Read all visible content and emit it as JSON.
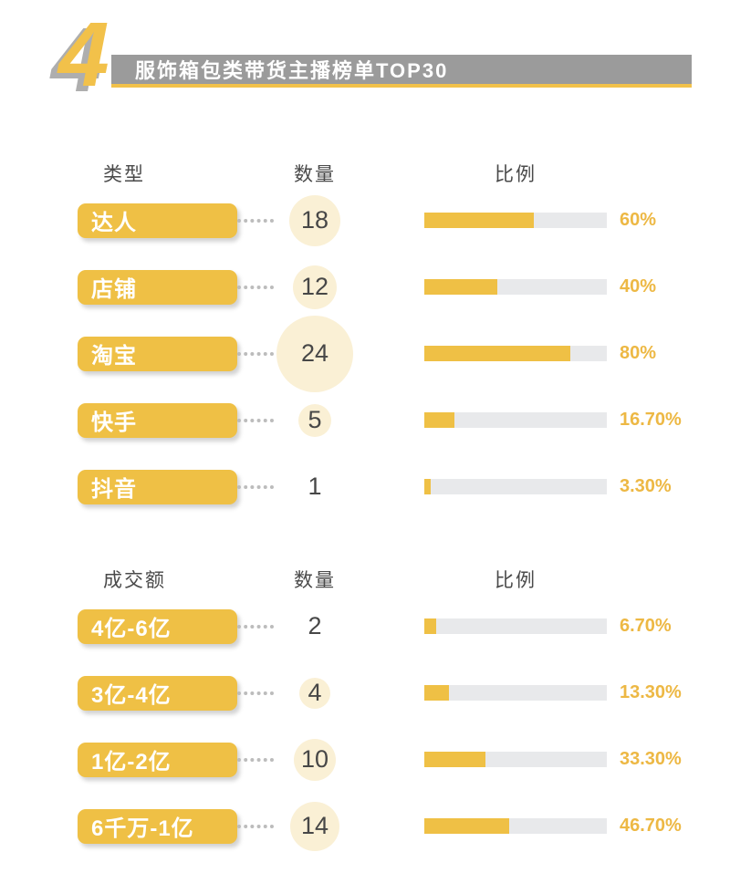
{
  "header": {
    "number": "4",
    "title": "服饰箱包类带货主播榜单TOP30"
  },
  "colors": {
    "accent": "#EFC045",
    "track": "#E8E9EB",
    "circle": "#FAF0D5",
    "banner": "#9B9B9B",
    "percent_text": "#EDB844"
  },
  "sections": [
    {
      "headers": {
        "col1": "类型",
        "col2": "数量",
        "col3": "比例"
      },
      "rows": [
        {
          "label": "达人",
          "count": "18",
          "percent": 60,
          "percent_label": "60%",
          "circle": 56
        },
        {
          "label": "店铺",
          "count": "12",
          "percent": 40,
          "percent_label": "40%",
          "circle": 48
        },
        {
          "label": "淘宝",
          "count": "24",
          "percent": 80,
          "percent_label": "80%",
          "circle": 84
        },
        {
          "label": "快手",
          "count": "5",
          "percent": 16.7,
          "percent_label": "16.70%",
          "circle": 36
        },
        {
          "label": "抖音",
          "count": "1",
          "percent": 3.3,
          "percent_label": "3.30%",
          "circle": 0
        }
      ]
    },
    {
      "headers": {
        "col1": "成交额",
        "col2": "数量",
        "col3": "比例"
      },
      "rows": [
        {
          "label": "4亿-6亿",
          "count": "2",
          "percent": 6.7,
          "percent_label": "6.70%",
          "circle": 0
        },
        {
          "label": "3亿-4亿",
          "count": "4",
          "percent": 13.3,
          "percent_label": "13.30%",
          "circle": 34
        },
        {
          "label": "1亿-2亿",
          "count": "10",
          "percent": 33.3,
          "percent_label": "33.30%",
          "circle": 46
        },
        {
          "label": "6千万-1亿",
          "count": "14",
          "percent": 46.7,
          "percent_label": "46.70%",
          "circle": 54
        }
      ]
    }
  ],
  "chart_data": [
    {
      "type": "bar",
      "title": "服饰箱包类带货主播榜单TOP30 - 类型",
      "categories": [
        "达人",
        "店铺",
        "淘宝",
        "快手",
        "抖音"
      ],
      "series": [
        {
          "name": "数量",
          "values": [
            18,
            12,
            24,
            5,
            1
          ]
        },
        {
          "name": "比例(%)",
          "values": [
            60,
            40,
            80,
            16.7,
            3.3
          ]
        }
      ],
      "xlabel": "比例",
      "ylabel": "类型",
      "xlim": [
        0,
        100
      ],
      "legend_position": "none",
      "grid": false
    },
    {
      "type": "bar",
      "title": "服饰箱包类带货主播榜单TOP30 - 成交额",
      "categories": [
        "4亿-6亿",
        "3亿-4亿",
        "1亿-2亿",
        "6千万-1亿"
      ],
      "series": [
        {
          "name": "数量",
          "values": [
            2,
            4,
            10,
            14
          ]
        },
        {
          "name": "比例(%)",
          "values": [
            6.7,
            13.3,
            33.3,
            46.7
          ]
        }
      ],
      "xlabel": "比例",
      "ylabel": "成交额",
      "xlim": [
        0,
        100
      ],
      "legend_position": "none",
      "grid": false
    }
  ]
}
